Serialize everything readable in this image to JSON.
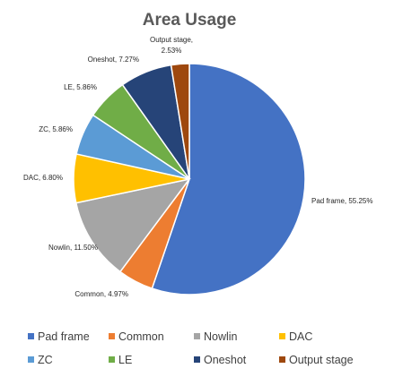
{
  "chart_data": {
    "type": "pie",
    "title": "Area Usage",
    "categories": [
      "Pad frame",
      "Common",
      "Nowlin",
      "DAC",
      "ZC",
      "LE",
      "Oneshot",
      "Output stage"
    ],
    "values": [
      55.25,
      4.97,
      11.5,
      6.8,
      5.86,
      5.86,
      7.27,
      2.53
    ],
    "data_labels": [
      "Pad frame, 55.25%",
      "Common, 4.97%",
      "Nowlin, 11.50%",
      "DAC, 6.80%",
      "ZC, 5.86%",
      "LE, 5.86%",
      "Oneshot, 7.27%",
      [
        "Output stage,",
        "2.53%"
      ]
    ],
    "colors": [
      "#4472C4",
      "#ED7D31",
      "#A5A5A5",
      "#FFC000",
      "#5B9BD5",
      "#70AD47",
      "#264478",
      "#9E480E"
    ],
    "start_angle": "top, clockwise",
    "legend": "bottom",
    "grid": false
  }
}
